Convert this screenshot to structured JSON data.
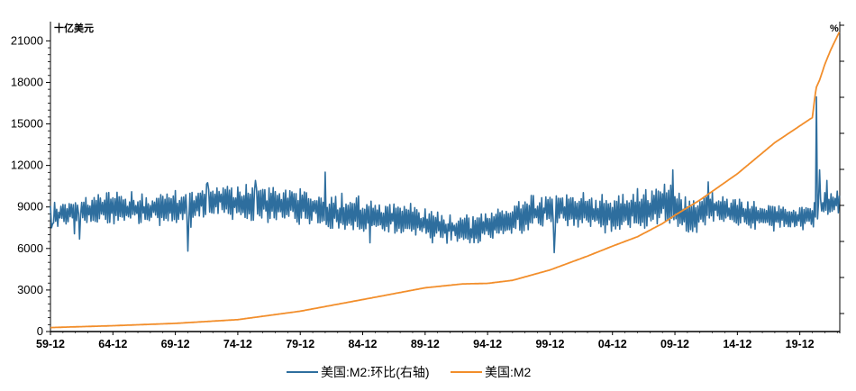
{
  "chart_data": {
    "type": "line",
    "left_axis_unit": "十亿美元",
    "right_axis_unit": "%",
    "yticks_left": [
      0,
      3000,
      6000,
      9000,
      12000,
      15000,
      18000,
      21000
    ],
    "ylim_left": [
      0,
      22000
    ],
    "ylim_right": [
      -9.5,
      31
    ],
    "x_tick_labels": [
      "59-12",
      "64-12",
      "69-12",
      "74-12",
      "79-12",
      "84-12",
      "89-12",
      "94-12",
      "99-12",
      "04-12",
      "09-12",
      "14-12",
      "19-12"
    ],
    "x_tick_years": [
      1959,
      1964,
      1969,
      1974,
      1979,
      1984,
      1989,
      1994,
      1999,
      2004,
      2009,
      2014,
      2019
    ],
    "xlim": [
      1959,
      2022.2
    ],
    "right_ticks_count": 9,
    "series": [
      {
        "name": "美国:M2:环比(右轴)",
        "axis": "right",
        "color": "#2e6e9e",
        "resolution": "monthly, 1959-01 to 2022-03",
        "knots": [
          [
            1959.0,
            6.0
          ],
          [
            1964.0,
            7.0
          ],
          [
            1969.0,
            6.5
          ],
          [
            1972.0,
            8.0
          ],
          [
            1975.0,
            7.5
          ],
          [
            1979.0,
            7.2
          ],
          [
            1981.0,
            6.5
          ],
          [
            1984.0,
            6.0
          ],
          [
            1987.0,
            5.5
          ],
          [
            1990.0,
            4.5
          ],
          [
            1993.0,
            4.0
          ],
          [
            1995.0,
            5.0
          ],
          [
            1998.0,
            6.5
          ],
          [
            2001.0,
            6.5
          ],
          [
            2003.0,
            6.0
          ],
          [
            2006.0,
            6.5
          ],
          [
            2008.5,
            7.5
          ],
          [
            2010.0,
            5.5
          ],
          [
            2012.0,
            7.0
          ],
          [
            2015.0,
            6.0
          ],
          [
            2019.0,
            5.5
          ],
          [
            2020.2,
            6.0
          ],
          [
            2021.0,
            7.5
          ],
          [
            2022.2,
            7.5
          ]
        ],
        "amplitude_knots": [
          [
            1959,
            1.6
          ],
          [
            1970,
            2.3
          ],
          [
            1985,
            2.0
          ],
          [
            1992,
            1.6
          ],
          [
            2000,
            2.2
          ],
          [
            2008,
            2.4
          ],
          [
            2015,
            1.6
          ],
          [
            2022.2,
            1.6
          ]
        ],
        "events": [
          [
            1959.15,
            4.8
          ],
          [
            1960.9,
            3.5
          ],
          [
            1961.3,
            2.8
          ],
          [
            1970.0,
            1.2
          ],
          [
            1971.6,
            10.3
          ],
          [
            1975.4,
            10.6
          ],
          [
            1976.5,
            9.6
          ],
          [
            1981.0,
            11.7
          ],
          [
            1984.6,
            2.3
          ],
          [
            1989.6,
            2.3
          ],
          [
            1999.3,
            1.0
          ],
          [
            2008.8,
            12.0
          ],
          [
            2011.7,
            10.4
          ],
          [
            2020.3,
            21.7
          ],
          [
            2020.6,
            12.0
          ],
          [
            2021.2,
            10.6
          ]
        ]
      },
      {
        "name": "美国:M2",
        "axis": "left",
        "color": "#f28e2b",
        "knots": [
          [
            1959.0,
            287
          ],
          [
            1964.0,
            420
          ],
          [
            1969.0,
            590
          ],
          [
            1974.0,
            860
          ],
          [
            1979.0,
            1470
          ],
          [
            1984.0,
            2310
          ],
          [
            1989.0,
            3160
          ],
          [
            1992.0,
            3440
          ],
          [
            1994.0,
            3480
          ],
          [
            1996.0,
            3700
          ],
          [
            1999.0,
            4450
          ],
          [
            2002.0,
            5450
          ],
          [
            2004.0,
            6170
          ],
          [
            2006.0,
            6850
          ],
          [
            2008.0,
            7800
          ],
          [
            2009.0,
            8400
          ],
          [
            2011.0,
            9500
          ],
          [
            2014.0,
            11400
          ],
          [
            2017.0,
            13650
          ],
          [
            2019.9,
            15400
          ],
          [
            2020.0,
            15450
          ],
          [
            2020.3,
            17600
          ],
          [
            2020.6,
            18200
          ],
          [
            2021.0,
            19300
          ],
          [
            2021.5,
            20400
          ],
          [
            2022.2,
            21700
          ]
        ]
      }
    ],
    "legend": {
      "placement": "bottom-center"
    }
  }
}
